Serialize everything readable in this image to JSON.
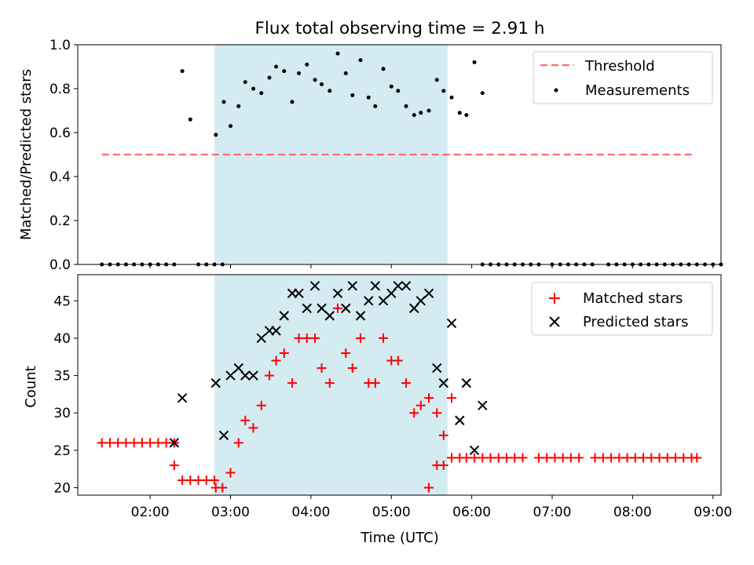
{
  "figure": {
    "title": "Flux total observing time = 2.91 h"
  },
  "colors": {
    "span": "#add8e6",
    "threshold": "#ff6b6b",
    "measurement": "#000000",
    "matched": "#ff0000",
    "predicted": "#000000"
  },
  "chart_data": [
    {
      "type": "scatter",
      "ylabel": "Matched/Predicted stars",
      "xlabel": "",
      "x_axis": "time (UTC)",
      "xlim": [
        "01:06",
        "09:06"
      ],
      "ylim": [
        0,
        1.0
      ],
      "yticks": [
        "0.0",
        "0.2",
        "0.4",
        "0.6",
        "0.8",
        "1.0"
      ],
      "observing_span": [
        "02:48",
        "05:42"
      ],
      "legend": {
        "position": "top-right",
        "entries": [
          "Threshold",
          "Measurements"
        ]
      },
      "threshold": {
        "name": "Threshold",
        "y": 0.5,
        "x": [
          "01:24",
          "08:45"
        ]
      },
      "series": [
        {
          "name": "Measurements",
          "points": [
            [
              "01:24",
              0
            ],
            [
              "01:30",
              0
            ],
            [
              "01:36",
              0
            ],
            [
              "01:42",
              0
            ],
            [
              "01:48",
              0
            ],
            [
              "01:54",
              0
            ],
            [
              "02:00",
              0
            ],
            [
              "02:06",
              0
            ],
            [
              "02:12",
              0
            ],
            [
              "02:18",
              0
            ],
            [
              "02:24",
              0.88
            ],
            [
              "02:30",
              0.66
            ],
            [
              "02:36",
              0
            ],
            [
              "02:42",
              0
            ],
            [
              "02:48",
              0
            ],
            [
              "02:54",
              0
            ],
            [
              "02:49",
              0.59
            ],
            [
              "02:55",
              0.74
            ],
            [
              "03:00",
              0.63
            ],
            [
              "03:06",
              0.72
            ],
            [
              "03:11",
              0.83
            ],
            [
              "03:17",
              0.8
            ],
            [
              "03:23",
              0.78
            ],
            [
              "03:29",
              0.85
            ],
            [
              "03:34",
              0.9
            ],
            [
              "03:40",
              0.88
            ],
            [
              "03:46",
              0.74
            ],
            [
              "03:51",
              0.87
            ],
            [
              "03:57",
              0.91
            ],
            [
              "04:03",
              0.84
            ],
            [
              "04:08",
              0.82
            ],
            [
              "04:14",
              0.79
            ],
            [
              "04:20",
              0.96
            ],
            [
              "04:26",
              0.87
            ],
            [
              "04:31",
              0.77
            ],
            [
              "04:37",
              0.93
            ],
            [
              "04:43",
              0.76
            ],
            [
              "04:48",
              0.72
            ],
            [
              "04:54",
              0.89
            ],
            [
              "05:00",
              0.81
            ],
            [
              "05:05",
              0.79
            ],
            [
              "05:11",
              0.72
            ],
            [
              "05:17",
              0.68
            ],
            [
              "05:22",
              0.69
            ],
            [
              "05:28",
              0.7
            ],
            [
              "05:34",
              0.84
            ],
            [
              "05:39",
              0.79
            ],
            [
              "05:45",
              0.76
            ],
            [
              "05:51",
              0.69
            ],
            [
              "05:56",
              0.68
            ],
            [
              "06:02",
              0.92
            ],
            [
              "06:08",
              0.78
            ],
            [
              "06:08",
              0
            ],
            [
              "06:14",
              0
            ],
            [
              "06:20",
              0
            ],
            [
              "06:26",
              0
            ],
            [
              "06:32",
              0
            ],
            [
              "06:38",
              0
            ],
            [
              "06:44",
              0
            ],
            [
              "06:50",
              0
            ],
            [
              "07:00",
              0
            ],
            [
              "07:06",
              0
            ],
            [
              "07:12",
              0
            ],
            [
              "07:18",
              0
            ],
            [
              "07:24",
              0
            ],
            [
              "07:30",
              0
            ],
            [
              "07:42",
              0
            ],
            [
              "07:48",
              0
            ],
            [
              "07:54",
              0
            ],
            [
              "08:00",
              0
            ],
            [
              "08:06",
              0
            ],
            [
              "08:12",
              0
            ],
            [
              "08:18",
              0
            ],
            [
              "08:24",
              0
            ],
            [
              "08:30",
              0
            ],
            [
              "08:36",
              0
            ],
            [
              "08:42",
              0
            ],
            [
              "08:48",
              0
            ],
            [
              "08:54",
              0
            ],
            [
              "09:00",
              0
            ],
            [
              "09:06",
              0
            ]
          ]
        }
      ]
    },
    {
      "type": "scatter",
      "ylabel": "Count",
      "xlabel": "Time (UTC)",
      "x_axis": "time (UTC)",
      "xlim": [
        "01:06",
        "09:06"
      ],
      "ylim": [
        19,
        48.5
      ],
      "xticks": [
        "02:00",
        "03:00",
        "04:00",
        "05:00",
        "06:00",
        "07:00",
        "08:00",
        "09:00"
      ],
      "yticks": [
        "20",
        "25",
        "30",
        "35",
        "40",
        "45"
      ],
      "observing_span": [
        "02:48",
        "05:42"
      ],
      "legend": {
        "position": "top-right",
        "entries": [
          "Matched stars",
          "Predicted stars"
        ]
      },
      "series": [
        {
          "name": "Matched stars",
          "marker": "plus",
          "points": [
            [
              "01:24",
              26
            ],
            [
              "01:30",
              26
            ],
            [
              "01:36",
              26
            ],
            [
              "01:42",
              26
            ],
            [
              "01:48",
              26
            ],
            [
              "01:54",
              26
            ],
            [
              "02:00",
              26
            ],
            [
              "02:06",
              26
            ],
            [
              "02:12",
              26
            ],
            [
              "02:18",
              26
            ],
            [
              "02:18",
              23
            ],
            [
              "02:24",
              21
            ],
            [
              "02:30",
              21
            ],
            [
              "02:36",
              21
            ],
            [
              "02:42",
              21
            ],
            [
              "02:48",
              21
            ],
            [
              "02:49",
              20
            ],
            [
              "02:54",
              20
            ],
            [
              "03:00",
              22
            ],
            [
              "03:06",
              26
            ],
            [
              "03:11",
              29
            ],
            [
              "03:17",
              28
            ],
            [
              "03:23",
              31
            ],
            [
              "03:29",
              35
            ],
            [
              "03:34",
              37
            ],
            [
              "03:40",
              38
            ],
            [
              "03:46",
              34
            ],
            [
              "03:51",
              40
            ],
            [
              "03:57",
              40
            ],
            [
              "04:03",
              40
            ],
            [
              "04:08",
              36
            ],
            [
              "04:14",
              34
            ],
            [
              "04:20",
              44
            ],
            [
              "04:26",
              38
            ],
            [
              "04:31",
              36
            ],
            [
              "04:37",
              40
            ],
            [
              "04:43",
              34
            ],
            [
              "04:48",
              34
            ],
            [
              "04:54",
              40
            ],
            [
              "05:00",
              37
            ],
            [
              "05:05",
              37
            ],
            [
              "05:11",
              34
            ],
            [
              "05:17",
              30
            ],
            [
              "05:22",
              31
            ],
            [
              "05:28",
              32
            ],
            [
              "05:34",
              30
            ],
            [
              "05:39",
              27
            ],
            [
              "05:45",
              32
            ],
            [
              "05:28",
              20
            ],
            [
              "05:34",
              23
            ],
            [
              "05:39",
              23
            ],
            [
              "05:45",
              24
            ],
            [
              "05:51",
              24
            ],
            [
              "05:56",
              24
            ],
            [
              "06:02",
              24
            ],
            [
              "06:08",
              24
            ],
            [
              "06:14",
              24
            ],
            [
              "06:20",
              24
            ],
            [
              "06:26",
              24
            ],
            [
              "06:32",
              24
            ],
            [
              "06:38",
              24
            ],
            [
              "06:50",
              24
            ],
            [
              "06:56",
              24
            ],
            [
              "07:02",
              24
            ],
            [
              "07:08",
              24
            ],
            [
              "07:14",
              24
            ],
            [
              "07:20",
              24
            ],
            [
              "07:32",
              24
            ],
            [
              "07:38",
              24
            ],
            [
              "07:44",
              24
            ],
            [
              "07:50",
              24
            ],
            [
              "07:56",
              24
            ],
            [
              "08:02",
              24
            ],
            [
              "08:08",
              24
            ],
            [
              "08:14",
              24
            ],
            [
              "08:20",
              24
            ],
            [
              "08:26",
              24
            ],
            [
              "08:32",
              24
            ],
            [
              "08:38",
              24
            ],
            [
              "08:44",
              24
            ],
            [
              "08:48",
              24
            ]
          ]
        },
        {
          "name": "Predicted stars",
          "marker": "x",
          "points": [
            [
              "02:18",
              26
            ],
            [
              "02:24",
              32
            ],
            [
              "02:49",
              34
            ],
            [
              "02:55",
              27
            ],
            [
              "03:00",
              35
            ],
            [
              "03:06",
              36
            ],
            [
              "03:11",
              35
            ],
            [
              "03:17",
              35
            ],
            [
              "03:23",
              40
            ],
            [
              "03:29",
              41
            ],
            [
              "03:34",
              41
            ],
            [
              "03:40",
              43
            ],
            [
              "03:46",
              46
            ],
            [
              "03:51",
              46
            ],
            [
              "03:57",
              44
            ],
            [
              "04:03",
              47
            ],
            [
              "04:08",
              44
            ],
            [
              "04:14",
              43
            ],
            [
              "04:20",
              46
            ],
            [
              "04:26",
              44
            ],
            [
              "04:31",
              47
            ],
            [
              "04:37",
              43
            ],
            [
              "04:43",
              45
            ],
            [
              "04:48",
              47
            ],
            [
              "04:54",
              45
            ],
            [
              "05:00",
              46
            ],
            [
              "05:05",
              47
            ],
            [
              "05:11",
              47
            ],
            [
              "05:17",
              44
            ],
            [
              "05:22",
              45
            ],
            [
              "05:28",
              46
            ],
            [
              "05:34",
              36
            ],
            [
              "05:39",
              34
            ],
            [
              "05:45",
              42
            ],
            [
              "05:51",
              29
            ],
            [
              "05:56",
              34
            ],
            [
              "06:02",
              25
            ],
            [
              "06:08",
              31
            ]
          ]
        }
      ]
    }
  ]
}
